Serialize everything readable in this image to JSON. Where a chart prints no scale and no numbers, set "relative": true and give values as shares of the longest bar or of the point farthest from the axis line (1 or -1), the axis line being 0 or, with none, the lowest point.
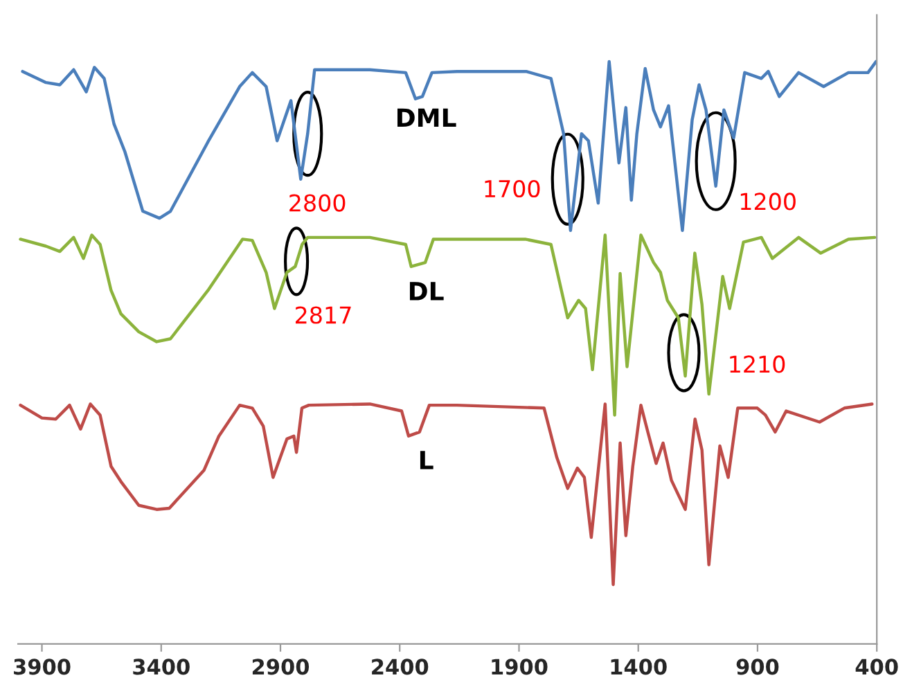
{
  "chart_data": {
    "type": "line",
    "relative": true,
    "xlim": [
      4000,
      400
    ],
    "xticks": [
      3900,
      3400,
      2900,
      2400,
      1900,
      1400,
      900,
      400
    ],
    "grid": false,
    "legend": false,
    "marker": "none",
    "line_style": "solid",
    "annotations": [
      {
        "text": "2800",
        "x": 2786,
        "y": 0.876
      },
      {
        "text": "1700",
        "x": 1696,
        "y": 0.798
      },
      {
        "text": "1200",
        "x": 1075,
        "y": 0.829
      },
      {
        "text": "2817",
        "x": 2833,
        "y": 0.657
      },
      {
        "text": "1210",
        "x": 1209,
        "y": 0.5
      }
    ],
    "series": [
      {
        "name": "DML",
        "color": "#4a7ebb",
        "x": [
          3981,
          3883,
          3825,
          3767,
          3714,
          3680,
          3639,
          3598,
          3552,
          3477,
          3407,
          3361,
          3204,
          3071,
          3018,
          2960,
          2914,
          2856,
          2815,
          2786,
          2757,
          2525,
          2375,
          2334,
          2305,
          2265,
          2160,
          1870,
          1766,
          1713,
          1684,
          1655,
          1638,
          1609,
          1568,
          1522,
          1481,
          1452,
          1429,
          1406,
          1371,
          1336,
          1307,
          1273,
          1215,
          1174,
          1145,
          1116,
          1075,
          1041,
          1000,
          954,
          884,
          855,
          809,
          728,
          623,
          519,
          437,
          403
        ],
        "values": [
          0.983,
          0.964,
          0.96,
          0.986,
          0.948,
          0.99,
          0.971,
          0.893,
          0.845,
          0.743,
          0.731,
          0.743,
          0.862,
          0.957,
          0.981,
          0.957,
          0.864,
          0.933,
          0.798,
          0.876,
          0.986,
          0.986,
          0.981,
          0.936,
          0.94,
          0.981,
          0.983,
          0.983,
          0.971,
          0.876,
          0.71,
          0.814,
          0.876,
          0.864,
          0.757,
          1.0,
          0.826,
          0.921,
          0.762,
          0.876,
          0.988,
          0.917,
          0.888,
          0.924,
          0.71,
          0.9,
          0.96,
          0.917,
          0.786,
          0.917,
          0.869,
          0.981,
          0.971,
          0.983,
          0.94,
          0.981,
          0.957,
          0.981,
          0.981,
          1.0
        ]
      },
      {
        "name": "DL",
        "color": "#8cb33c",
        "x": [
          3990,
          3883,
          3825,
          3767,
          3726,
          3691,
          3656,
          3610,
          3569,
          3494,
          3419,
          3361,
          3204,
          3059,
          3018,
          2960,
          2925,
          2873,
          2838,
          2809,
          2786,
          2525,
          2375,
          2352,
          2293,
          2259,
          2160,
          1874,
          1766,
          1696,
          1650,
          1621,
          1592,
          1539,
          1499,
          1476,
          1447,
          1389,
          1336,
          1307,
          1278,
          1232,
          1203,
          1163,
          1133,
          1104,
          1046,
          1017,
          959,
          884,
          838,
          728,
          635,
          519,
          409
        ],
        "values": [
          0.695,
          0.683,
          0.674,
          0.698,
          0.662,
          0.702,
          0.686,
          0.607,
          0.567,
          0.536,
          0.519,
          0.524,
          0.607,
          0.695,
          0.693,
          0.638,
          0.576,
          0.638,
          0.648,
          0.686,
          0.698,
          0.698,
          0.686,
          0.648,
          0.655,
          0.695,
          0.695,
          0.695,
          0.686,
          0.56,
          0.59,
          0.576,
          0.471,
          0.702,
          0.393,
          0.636,
          0.476,
          0.702,
          0.655,
          0.638,
          0.59,
          0.56,
          0.46,
          0.671,
          0.583,
          0.429,
          0.631,
          0.576,
          0.69,
          0.698,
          0.662,
          0.698,
          0.671,
          0.695,
          0.698
        ]
      },
      {
        "name": "L",
        "color": "#be4b48",
        "x": [
          3990,
          3900,
          3842,
          3784,
          3738,
          3697,
          3656,
          3610,
          3569,
          3494,
          3419,
          3366,
          3221,
          3158,
          3071,
          3018,
          2972,
          2931,
          2873,
          2844,
          2833,
          2810,
          2781,
          2525,
          2392,
          2363,
          2317,
          2276,
          2160,
          1795,
          1742,
          1696,
          1655,
          1626,
          1597,
          1539,
          1505,
          1476,
          1452,
          1423,
          1389,
          1360,
          1325,
          1296,
          1261,
          1203,
          1162,
          1133,
          1104,
          1058,
          1023,
          983,
          901,
          867,
          826,
          780,
          640,
          536,
          420
        ],
        "values": [
          0.41,
          0.388,
          0.386,
          0.41,
          0.369,
          0.412,
          0.393,
          0.305,
          0.279,
          0.238,
          0.231,
          0.233,
          0.298,
          0.357,
          0.41,
          0.405,
          0.374,
          0.286,
          0.352,
          0.357,
          0.329,
          0.405,
          0.41,
          0.412,
          0.4,
          0.357,
          0.364,
          0.41,
          0.41,
          0.405,
          0.321,
          0.267,
          0.302,
          0.286,
          0.183,
          0.412,
          0.102,
          0.345,
          0.186,
          0.305,
          0.41,
          0.364,
          0.31,
          0.345,
          0.281,
          0.231,
          0.386,
          0.333,
          0.136,
          0.34,
          0.286,
          0.405,
          0.405,
          0.393,
          0.364,
          0.4,
          0.381,
          0.405,
          0.412
        ]
      }
    ]
  }
}
